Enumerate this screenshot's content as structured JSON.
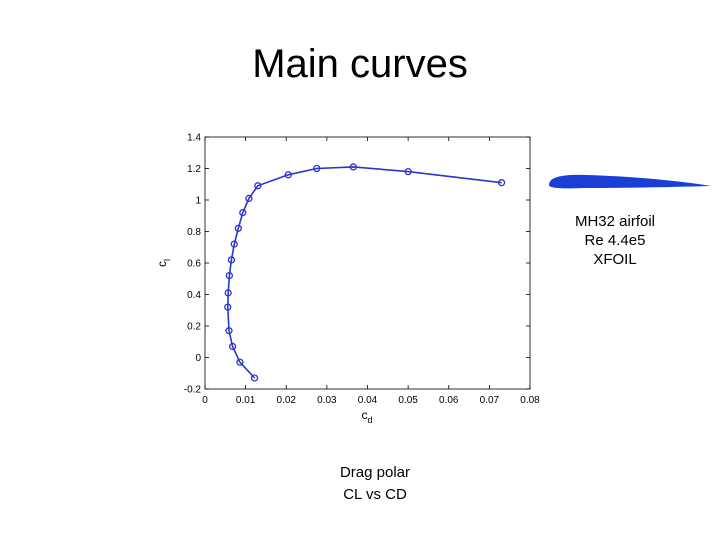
{
  "slide": {
    "title": "Main curves"
  },
  "captions": {
    "airfoil": [
      "MH32 airfoil",
      "Re 4.4e5",
      "XFOIL"
    ],
    "chart": [
      "Drag polar",
      "CL vs CD"
    ]
  },
  "colors": {
    "series": "#2a36c8",
    "airfoil": "#1a3fd6"
  },
  "chart_data": {
    "type": "line",
    "xlabel_main": "c",
    "xlabel_sub": "d",
    "ylabel_main": "c",
    "ylabel_sub": "l",
    "xlim": [
      0,
      0.08
    ],
    "ylim": [
      -0.2,
      1.4
    ],
    "xticks": [
      "0",
      "0.01",
      "0.02",
      "0.03",
      "0.04",
      "0.05",
      "0.06",
      "0.07",
      "0.08"
    ],
    "xtick_values": [
      0,
      0.01,
      0.02,
      0.03,
      0.04,
      0.05,
      0.06,
      0.07,
      0.08
    ],
    "yticks": [
      "-0.2",
      "0",
      "0.2",
      "0.4",
      "0.6",
      "0.8",
      "1",
      "1.2",
      "1.4"
    ],
    "ytick_values": [
      -0.2,
      0,
      0.2,
      0.4,
      0.6,
      0.8,
      1.0,
      1.2,
      1.4
    ],
    "grid": false,
    "markers": "open-circle",
    "series": [
      {
        "x": [
          0.0122,
          0.0086,
          0.0068,
          0.0059,
          0.0056,
          0.0057,
          0.006,
          0.0065,
          0.0072,
          0.0082,
          0.0093,
          0.0108,
          0.013,
          0.0205,
          0.0275,
          0.0365,
          0.05,
          0.073
        ],
        "y": [
          -0.13,
          -0.03,
          0.07,
          0.17,
          0.32,
          0.41,
          0.52,
          0.62,
          0.72,
          0.82,
          0.92,
          1.01,
          1.09,
          1.16,
          1.2,
          1.21,
          1.18,
          1.11
        ]
      }
    ]
  }
}
